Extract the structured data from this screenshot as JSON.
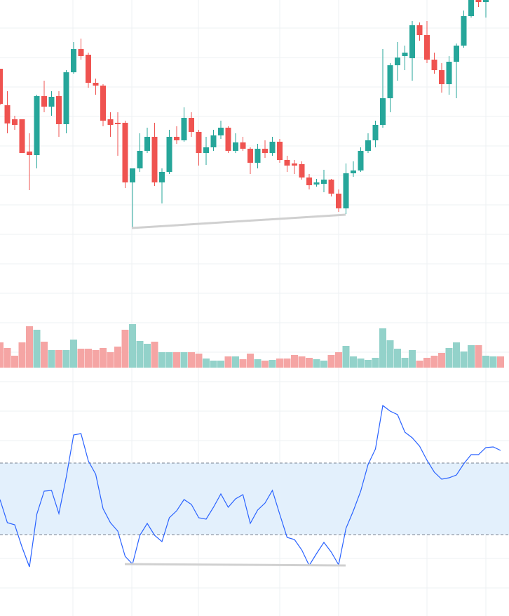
{
  "chart_data": [
    {
      "type": "candlestick",
      "open": [
        232,
        180,
        160,
        160,
        114,
        109,
        193,
        178,
        193,
        153,
        227,
        260,
        252,
        212,
        208,
        160,
        155,
        155,
        70,
        90,
        115,
        135,
        70,
        85,
        135,
        130,
        162,
        142,
        112,
        120,
        137,
        148,
        115,
        127,
        118,
        98,
        118,
        112,
        128,
        102,
        97,
        96,
        77,
        67,
        68,
        74,
        54,
        33,
        83,
        87,
        115,
        130,
        152,
        190,
        237,
        250,
        247,
        294,
        280,
        245,
        230,
        210,
        242,
        265,
        307,
        330,
        327,
        345,
        352
      ],
      "high": [
        232,
        200,
        165,
        160,
        140,
        195,
        215,
        200,
        200,
        230,
        270,
        275,
        255,
        218,
        210,
        170,
        170,
        158,
        90,
        140,
        148,
        155,
        90,
        145,
        150,
        177,
        170,
        145,
        135,
        145,
        158,
        150,
        140,
        135,
        120,
        125,
        130,
        135,
        132,
        108,
        102,
        100,
        82,
        75,
        88,
        75,
        60,
        97,
        100,
        120,
        140,
        158,
        260,
        240,
        270,
        265,
        300,
        298,
        300,
        255,
        240,
        250,
        268,
        315,
        340,
        335,
        335,
        355,
        356
      ],
      "low": [
        180,
        140,
        145,
        112,
        59,
        90,
        170,
        165,
        135,
        140,
        225,
        245,
        205,
        195,
        150,
        135,
        108,
        62,
        5,
        85,
        112,
        65,
        40,
        82,
        125,
        128,
        135,
        94,
        95,
        115,
        132,
        112,
        112,
        115,
        82,
        90,
        105,
        108,
        98,
        85,
        82,
        74,
        60,
        64,
        56,
        50,
        28,
        25,
        78,
        85,
        112,
        120,
        148,
        170,
        215,
        230,
        215,
        272,
        240,
        225,
        198,
        195,
        190,
        262,
        305,
        320,
        305,
        340,
        345
      ],
      "close": [
        182,
        154,
        152,
        112,
        109,
        193,
        178,
        192,
        153,
        227,
        260,
        250,
        212,
        208,
        158,
        152,
        153,
        70,
        90,
        115,
        135,
        70,
        85,
        135,
        130,
        162,
        142,
        112,
        120,
        137,
        148,
        115,
        127,
        118,
        98,
        118,
        112,
        128,
        102,
        94,
        94,
        77,
        66,
        70,
        74,
        54,
        33,
        83,
        87,
        115,
        130,
        152,
        190,
        237,
        248,
        255,
        294,
        280,
        245,
        230,
        210,
        242,
        265,
        307,
        330,
        327,
        330,
        350,
        348
      ],
      "ylim": [
        0,
        330
      ],
      "up_color": "#26a69a",
      "down_color": "#ef5350"
    },
    {
      "type": "bar",
      "values": [
        36,
        28,
        17,
        36,
        59,
        54,
        37,
        25,
        25,
        25,
        40,
        27,
        27,
        25,
        28,
        22,
        30,
        54,
        62,
        38,
        34,
        37,
        22,
        22,
        22,
        22,
        22,
        20,
        13,
        10,
        10,
        16,
        16,
        12,
        20,
        12,
        10,
        11,
        13,
        13,
        18,
        16,
        14,
        12,
        10,
        18,
        22,
        31,
        16,
        13,
        11,
        14,
        56,
        39,
        27,
        14,
        25,
        10,
        14,
        17,
        21,
        28,
        36,
        23,
        32,
        32,
        17,
        16,
        16
      ],
      "ylim": [
        0,
        70
      ],
      "up_color": "#93d2ca",
      "down_color": "#f5a5a4"
    },
    {
      "type": "line",
      "values": [
        166,
        133,
        130,
        98,
        70,
        145,
        178,
        179,
        146,
        198,
        258,
        260,
        221,
        202,
        153,
        133,
        121,
        85,
        74,
        115,
        132,
        115,
        106,
        140,
        150,
        166,
        159,
        140,
        138,
        155,
        174,
        155,
        167,
        173,
        132,
        151,
        161,
        179,
        145,
        112,
        109,
        94,
        72,
        89,
        105,
        91,
        73,
        125,
        150,
        178,
        216,
        238,
        300,
        292,
        287,
        262,
        254,
        242,
        222,
        205,
        195,
        197,
        201,
        217,
        230,
        230,
        240,
        241,
        236
      ],
      "ylim": [
        0,
        330
      ],
      "color": "#2962ff",
      "band": [
        116,
        218
      ],
      "band_color": "#e3f0fc"
    }
  ]
}
